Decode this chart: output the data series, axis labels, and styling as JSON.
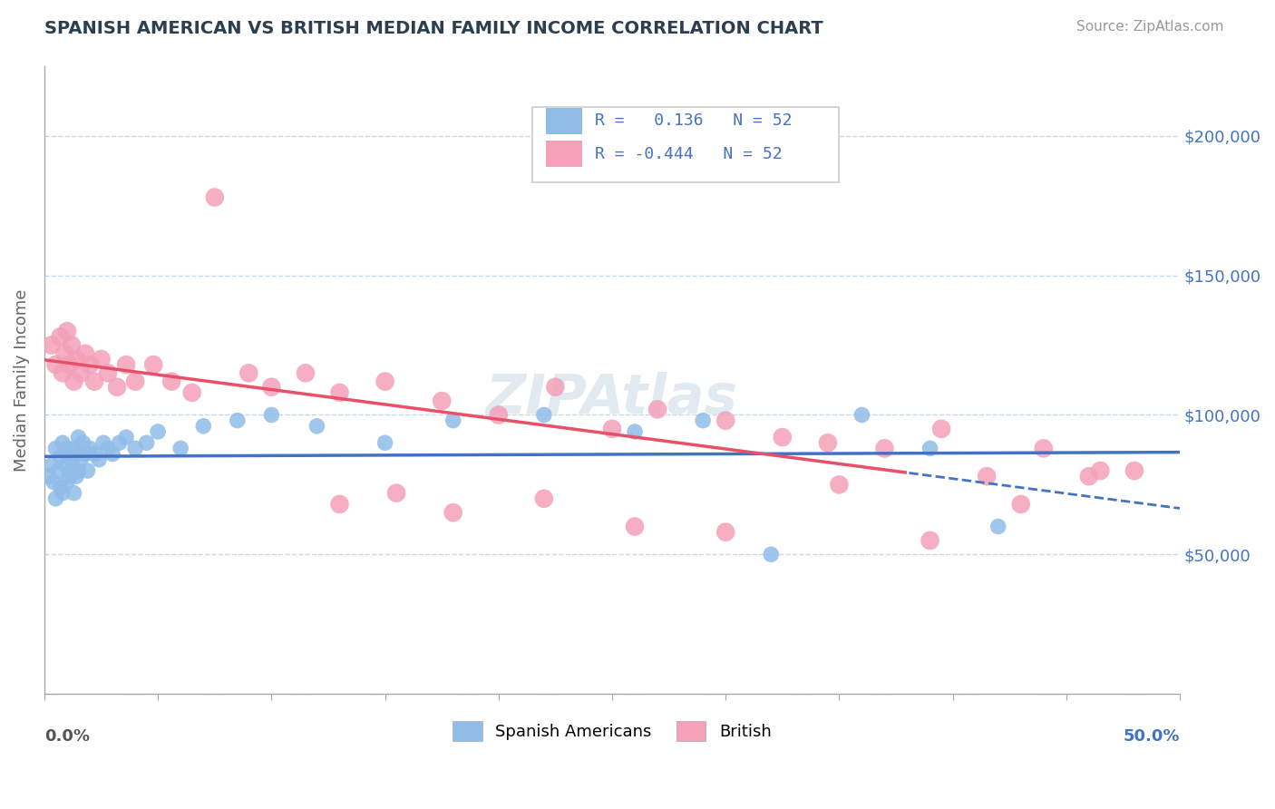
{
  "title": "SPANISH AMERICAN VS BRITISH MEDIAN FAMILY INCOME CORRELATION CHART",
  "source": "Source: ZipAtlas.com",
  "ylabel": "Median Family Income",
  "xlim": [
    0.0,
    0.5
  ],
  "ylim": [
    0,
    225000
  ],
  "yticks": [
    0,
    50000,
    100000,
    150000,
    200000
  ],
  "r_spanish": 0.136,
  "n_spanish": 52,
  "r_british": -0.444,
  "n_british": 52,
  "color_spanish": "#90bce8",
  "color_british": "#f4a0b8",
  "line_color_spanish": "#4472c4",
  "line_color_british": "#e8506a",
  "background_color": "#ffffff",
  "grid_color": "#c8d8ea",
  "spanish_x": [
    0.002,
    0.003,
    0.004,
    0.005,
    0.005,
    0.006,
    0.007,
    0.007,
    0.008,
    0.008,
    0.009,
    0.01,
    0.01,
    0.011,
    0.011,
    0.012,
    0.012,
    0.013,
    0.013,
    0.014,
    0.014,
    0.015,
    0.015,
    0.016,
    0.017,
    0.018,
    0.019,
    0.02,
    0.022,
    0.024,
    0.026,
    0.028,
    0.03,
    0.033,
    0.036,
    0.04,
    0.045,
    0.05,
    0.06,
    0.07,
    0.085,
    0.1,
    0.12,
    0.15,
    0.18,
    0.22,
    0.26,
    0.29,
    0.32,
    0.36,
    0.39,
    0.42
  ],
  "spanish_y": [
    78000,
    82000,
    76000,
    88000,
    70000,
    80000,
    85000,
    74000,
    90000,
    72000,
    82000,
    88000,
    76000,
    86000,
    78000,
    84000,
    80000,
    88000,
    72000,
    86000,
    78000,
    92000,
    80000,
    84000,
    90000,
    86000,
    80000,
    88000,
    86000,
    84000,
    90000,
    88000,
    86000,
    90000,
    92000,
    88000,
    90000,
    94000,
    88000,
    96000,
    98000,
    100000,
    96000,
    90000,
    98000,
    100000,
    94000,
    98000,
    50000,
    100000,
    88000,
    60000
  ],
  "british_x": [
    0.003,
    0.005,
    0.007,
    0.008,
    0.009,
    0.01,
    0.011,
    0.012,
    0.013,
    0.014,
    0.016,
    0.018,
    0.02,
    0.022,
    0.025,
    0.028,
    0.032,
    0.036,
    0.04,
    0.048,
    0.056,
    0.065,
    0.075,
    0.09,
    0.1,
    0.115,
    0.13,
    0.15,
    0.175,
    0.2,
    0.225,
    0.25,
    0.27,
    0.3,
    0.325,
    0.345,
    0.37,
    0.395,
    0.415,
    0.44,
    0.46,
    0.48,
    0.13,
    0.155,
    0.18,
    0.22,
    0.26,
    0.3,
    0.35,
    0.39,
    0.43,
    0.465
  ],
  "british_y": [
    125000,
    118000,
    128000,
    115000,
    122000,
    130000,
    118000,
    125000,
    112000,
    120000,
    115000,
    122000,
    118000,
    112000,
    120000,
    115000,
    110000,
    118000,
    112000,
    118000,
    112000,
    108000,
    178000,
    115000,
    110000,
    115000,
    108000,
    112000,
    105000,
    100000,
    110000,
    95000,
    102000,
    98000,
    92000,
    90000,
    88000,
    95000,
    78000,
    88000,
    78000,
    80000,
    68000,
    72000,
    65000,
    70000,
    60000,
    58000,
    75000,
    55000,
    68000,
    80000
  ]
}
